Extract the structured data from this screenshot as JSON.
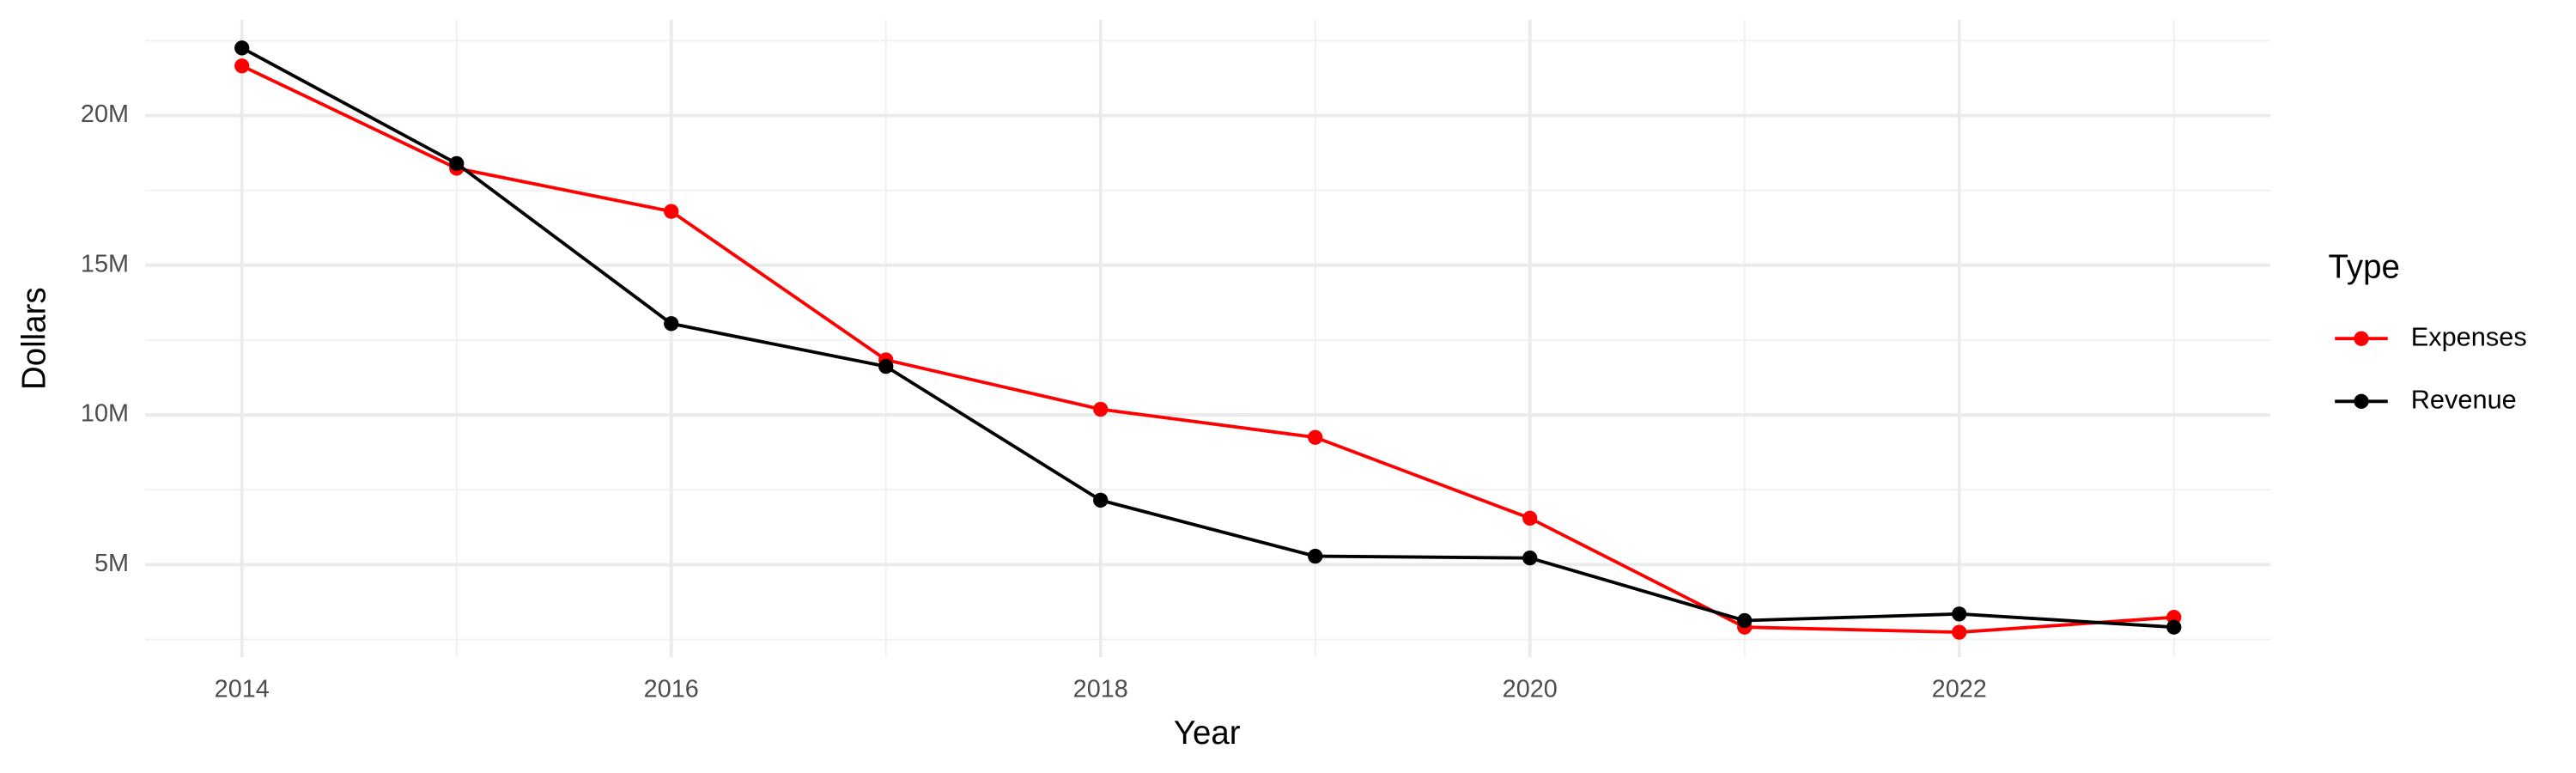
{
  "chart_data": {
    "type": "line",
    "x_label": "Year",
    "y_label": "Dollars",
    "legend_title": "Type",
    "legend": "right",
    "grid": true,
    "x": [
      2014,
      2015,
      2016,
      2017,
      2018,
      2019,
      2020,
      2021,
      2022,
      2023
    ],
    "series": [
      {
        "name": "Expenses",
        "color": "#ff0000",
        "values": [
          21660000,
          18240000,
          16800000,
          11840000,
          10190000,
          9250000,
          6550000,
          2910000,
          2740000,
          3240000
        ]
      },
      {
        "name": "Revenue",
        "color": "#000000",
        "values": [
          22260000,
          18400000,
          13050000,
          11620000,
          7150000,
          5280000,
          5220000,
          3130000,
          3350000,
          2910000
        ]
      }
    ],
    "xlim": [
      2013.55,
      2023.45
    ],
    "xticks": [
      2014,
      2016,
      2018,
      2020,
      2022
    ],
    "minor_xticks": [
      2015,
      2017,
      2019,
      2021,
      2023
    ],
    "ylim": [
      1900000,
      23200000
    ],
    "yticks": [
      {
        "value": 5000000,
        "label": "5M"
      },
      {
        "value": 10000000,
        "label": "10M"
      },
      {
        "value": 15000000,
        "label": "15M"
      },
      {
        "value": 20000000,
        "label": "20M"
      }
    ],
    "minor_yticks": [
      2500000,
      7500000,
      12500000,
      17500000,
      22500000
    ]
  }
}
